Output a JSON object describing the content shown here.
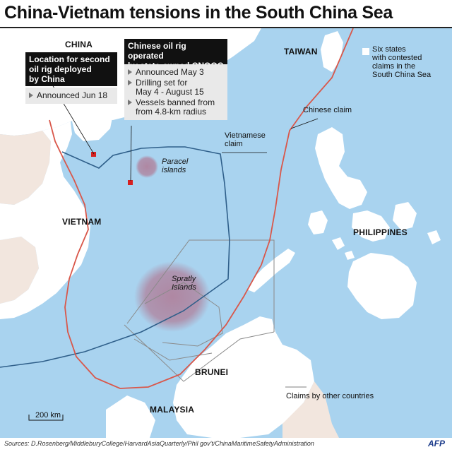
{
  "title": "China-Vietnam tensions in the South China Sea",
  "countries": {
    "china": "CHINA",
    "taiwan": "TAIWAN",
    "vietnam": "VIETNAM",
    "philippines": "PHILIPPINES",
    "brunei": "BRUNEI",
    "malaysia": "MALAYSIA"
  },
  "islands": {
    "paracel_line1": "Paracel",
    "paracel_line2": "islands",
    "spratly_line1": "Spratly",
    "spratly_line2": "Islands"
  },
  "second_rig": {
    "heading_line1": "Location for second",
    "heading_line2": "oil rig deployed",
    "heading_line3": "by China",
    "announced": "Announced Jun 18"
  },
  "first_rig": {
    "heading_line1": "Chinese oil rig operated",
    "heading_line2": "by state-owned CNOOC",
    "bullet1": "Announced May 3",
    "bullet2_line1": "Drilling set for",
    "bullet2_line2": "May 4 - August 15",
    "bullet3_line1": "Vessels banned from",
    "bullet3_line2": "from 4.8-km radius"
  },
  "claims": {
    "chinese": "Chinese claim",
    "vietnamese_line1": "Vietnamese",
    "vietnamese_line2": "claim",
    "others": "Claims by other countries"
  },
  "legend": {
    "line1": "Six states",
    "line2": "with contested",
    "line3": "claims in the",
    "line4": "South China Sea"
  },
  "scale_label": "200 km",
  "sources": "Sources: D.Rosenberg/MiddleburyCollege/HarvardAsiaQuarterly/Phil gov't/ChinaMaritimeSafetyAdministration",
  "credit": "AFP",
  "colors": {
    "sea": "#a9d3ef",
    "land_neighbor": "#f2e6de",
    "land_contested": "#ffffff",
    "chinese_claim": "#d9574a",
    "vietnamese_claim": "#2f5f8a",
    "other_claims": "#8a8a8a",
    "island_zone": "#b07a95"
  }
}
